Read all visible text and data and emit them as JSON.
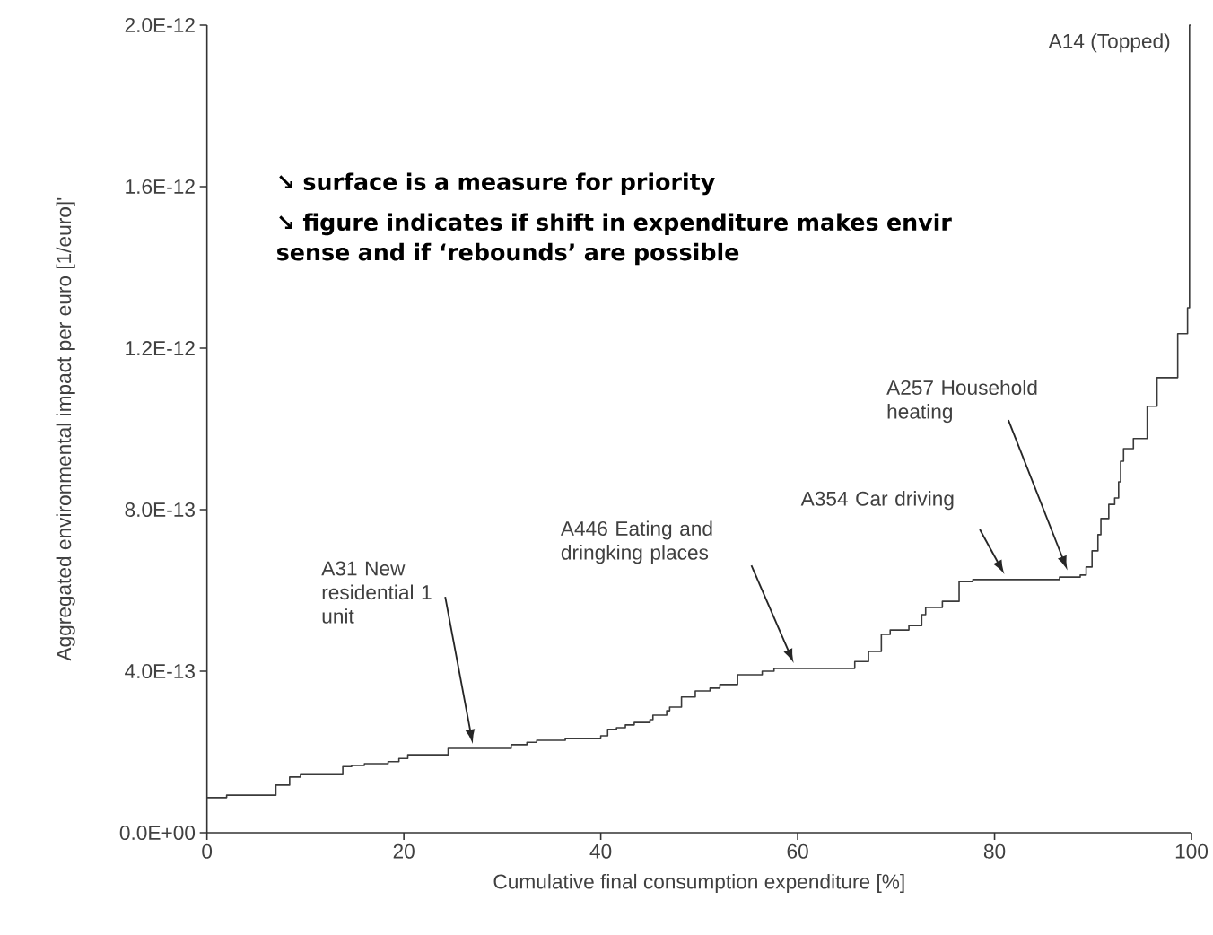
{
  "chart_data": {
    "type": "step",
    "xlabel": "Cumulative final consumption expenditure [%]",
    "ylabel": "Aggregated environmental impact per euro [1/euro]'",
    "x": [
      0,
      2.0,
      7.0,
      8.4,
      9.5,
      13.8,
      14.7,
      16.0,
      18.4,
      19.5,
      20.4,
      24.5,
      30.9,
      32.5,
      33.5,
      36.4,
      40.0,
      40.7,
      41.6,
      42.5,
      43.4,
      45.0,
      45.3,
      46.7,
      47.0,
      48.2,
      49.6,
      51.1,
      52.1,
      53.9,
      56.4,
      57.6,
      65.8,
      67.2,
      68.5,
      69.4,
      71.3,
      72.6,
      73.0,
      74.7,
      76.4,
      77.8,
      86.6,
      88.7,
      89.3,
      89.9,
      90.5,
      90.8,
      91.6,
      92.2,
      92.6,
      92.8,
      93.1,
      94.1,
      95.5,
      96.5,
      98.6,
      99.6,
      99.8
    ],
    "values": [
      8.7e-14,
      9.3e-14,
      1.18e-13,
      1.38e-13,
      1.44e-13,
      1.64e-13,
      1.67e-13,
      1.71e-13,
      1.76e-13,
      1.84e-13,
      1.93e-13,
      2.09e-13,
      2.18e-13,
      2.24e-13,
      2.29e-13,
      2.33e-13,
      2.4e-13,
      2.56e-13,
      2.6e-13,
      2.67e-13,
      2.73e-13,
      2.8e-13,
      2.91e-13,
      3.02e-13,
      3.11e-13,
      3.36e-13,
      3.51e-13,
      3.58e-13,
      3.67e-13,
      3.91e-13,
      4e-13,
      4.07e-13,
      4.24e-13,
      4.49e-13,
      4.91e-13,
      5.02e-13,
      5.13e-13,
      5.4e-13,
      5.58e-13,
      5.73e-13,
      6.22e-13,
      6.27e-13,
      6.33e-13,
      6.38e-13,
      6.58e-13,
      6.98e-13,
      7.38e-13,
      7.78e-13,
      8.13e-13,
      8.29e-13,
      8.69e-13,
      9.2e-13,
      9.51e-13,
      9.76e-13,
      1.056e-12,
      1.127e-12,
      1.236e-12,
      1.3e-12,
      2e-12
    ],
    "color": "#3a3a3a",
    "xlim": [
      0,
      100
    ],
    "ylim": [
      0,
      2e-12
    ],
    "xticks": [
      0,
      20,
      40,
      60,
      80,
      100
    ],
    "yticks": [
      {
        "value": 0,
        "label": "0.0E+00"
      },
      {
        "value": 4e-13,
        "label": "4.0E-13"
      },
      {
        "value": 8e-13,
        "label": "8.0E-13"
      },
      {
        "value": 1.2e-12,
        "label": "1.2E-12"
      },
      {
        "value": 1.6e-12,
        "label": "1.6E-12"
      },
      {
        "value": 2e-12,
        "label": "2.0E-12"
      }
    ],
    "annotations": [
      "A31 New residential 1 unit",
      "A446 Eating and dringking places",
      "A354 Car driving",
      "A257 Household heating",
      "A14 (Topped)",
      "↘ surface is a measure for priority",
      "↘ figure indicates if shift in expenditure makes envir sense and if ‘rebounds’ are possible"
    ]
  }
}
